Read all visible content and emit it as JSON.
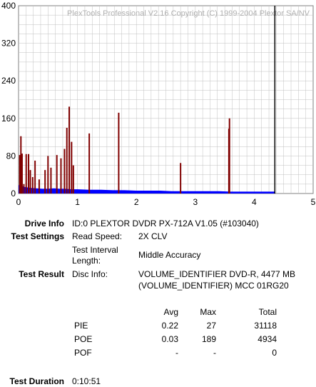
{
  "chart_data": {
    "type": "bar",
    "watermark": "PlexTools Professional V2.16 Copyright (C) 1999-2004 Plextor SA/NV",
    "xlim": [
      0,
      5
    ],
    "ylim": [
      0,
      400
    ],
    "x_ticks": [
      "0",
      "1",
      "2",
      "3",
      "4",
      "5"
    ],
    "y_ticks": [
      "0",
      "80",
      "160",
      "240",
      "320",
      "400"
    ],
    "grid": true,
    "series": [
      {
        "name": "PIE",
        "color": "#0000ff",
        "x": [
          0.0,
          0.1,
          0.2,
          0.3,
          0.4,
          0.5,
          0.6,
          0.7,
          0.8,
          0.9,
          1.0,
          1.2,
          1.4,
          1.6,
          1.8,
          2.0,
          2.2,
          2.4,
          2.6,
          2.8,
          3.0,
          3.2,
          3.4,
          3.6,
          3.8,
          4.0,
          4.2,
          4.35
        ],
        "values": [
          18,
          14,
          12,
          11,
          10,
          10,
          11,
          10,
          10,
          9,
          9,
          8,
          8,
          7,
          7,
          6,
          6,
          6,
          5,
          5,
          5,
          5,
          5,
          4,
          4,
          4,
          4,
          4
        ]
      },
      {
        "name": "POE",
        "color": "#800000",
        "x": [
          0.02,
          0.04,
          0.06,
          0.09,
          0.13,
          0.17,
          0.2,
          0.24,
          0.28,
          0.35,
          0.45,
          0.5,
          0.55,
          0.65,
          0.72,
          0.78,
          0.82,
          0.86,
          0.9,
          0.93,
          1.2,
          1.7,
          2.75,
          3.57,
          3.58
        ],
        "values": [
          82,
          122,
          85,
          20,
          84,
          84,
          50,
          35,
          70,
          30,
          50,
          80,
          55,
          82,
          75,
          95,
          140,
          185,
          110,
          60,
          128,
          172,
          65,
          138,
          160
        ]
      }
    ],
    "marker_x": 4.35
  },
  "info": {
    "drive_label": "Drive Info",
    "drive_value": "ID:0 PLEXTOR DVDR PX-712A V1.05 (#103040)",
    "settings_label": "Test Settings",
    "read_speed_label": "Read Speed:",
    "read_speed_value": "2X CLV",
    "interval_label_1": "Test Interval",
    "interval_label_2": "Length:",
    "interval_value": "Middle Accuracy",
    "result_label": "Test Result",
    "disc_info_label": "Disc Info:",
    "disc_info_line1": "VOLUME_IDENTIFIER DVD-R, 4477 MB",
    "disc_info_line2": "(VOLUME_IDENTIFIER) MCC 01RG20",
    "duration_label": "Test Duration",
    "duration_value": "0:10:51"
  },
  "results": {
    "headers": [
      "Avg",
      "Max",
      "Total"
    ],
    "rows": [
      {
        "name": "PIE",
        "avg": "0.22",
        "max": "27",
        "total": "31118"
      },
      {
        "name": "POE",
        "avg": "0.03",
        "max": "189",
        "total": "4934"
      },
      {
        "name": "POF",
        "avg": "-",
        "max": "-",
        "total": "0"
      }
    ]
  }
}
